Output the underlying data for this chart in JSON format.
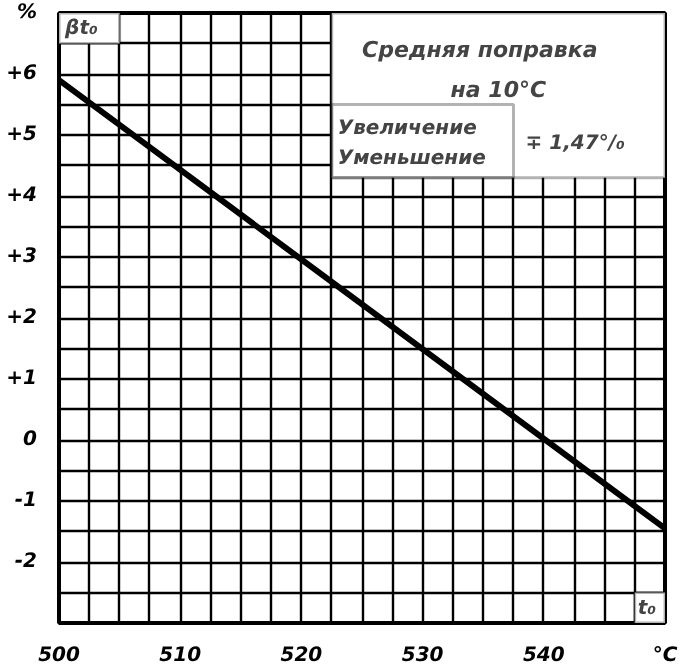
{
  "chart_data": {
    "type": "line",
    "xlabel": "t₀",
    "ylabel": "βt₀",
    "annotations": [
      "Средняя поправка",
      "на 10°C",
      "Увеличение",
      "Уменьшение",
      "∓ 1,47°/₀"
    ],
    "x": [
      500,
      550
    ],
    "series": [
      {
        "color": "#000000",
        "values": [
          5.9,
          -1.45
        ]
      }
    ],
    "xlim": [
      500,
      550
    ],
    "ylim": [
      -3,
      7
    ],
    "xticks": [
      500,
      {
        "value": 502.5,
        "label": null
      },
      {
        "value": 505,
        "label": null
      },
      {
        "value": 507.5,
        "label": null
      },
      510,
      {
        "value": 512.5,
        "label": null
      },
      {
        "value": 515,
        "label": null
      },
      {
        "value": 517.5,
        "label": null
      },
      520,
      {
        "value": 522.5,
        "label": null
      },
      {
        "value": 525,
        "label": null
      },
      {
        "value": 527.5,
        "label": null
      },
      530,
      {
        "value": 532.5,
        "label": null
      },
      {
        "value": 535,
        "label": null
      },
      {
        "value": 537.5,
        "label": null
      },
      540,
      {
        "value": 542.5,
        "label": null
      },
      {
        "value": 545,
        "label": null
      },
      {
        "value": 547.5,
        "label": null
      },
      {
        "value": 550,
        "label": "°C"
      }
    ],
    "yticks": [
      {
        "value": -3,
        "label": null
      },
      {
        "value": -2.5,
        "label": null
      },
      {
        "value": -2,
        "label": "-2"
      },
      {
        "value": -1.5,
        "label": null
      },
      {
        "value": -1,
        "label": "-1"
      },
      {
        "value": -0.5,
        "label": null
      },
      0,
      {
        "value": 0.5,
        "label": null
      },
      {
        "value": 1,
        "label": "+1"
      },
      {
        "value": 1.5,
        "label": null
      },
      {
        "value": 2,
        "label": "+2"
      },
      {
        "value": 2.5,
        "label": null
      },
      {
        "value": 3,
        "label": "+3"
      },
      {
        "value": 3.5,
        "label": null
      },
      {
        "value": 4,
        "label": "+4"
      },
      {
        "value": 4.5,
        "label": null
      },
      {
        "value": 5,
        "label": "+5"
      },
      {
        "value": 5.5,
        "label": null
      },
      {
        "value": 6,
        "label": "+6"
      },
      {
        "value": 6.5,
        "label": null
      },
      {
        "value": 7,
        "label": "%"
      }
    ],
    "grid": true,
    "line_style": "solid"
  }
}
